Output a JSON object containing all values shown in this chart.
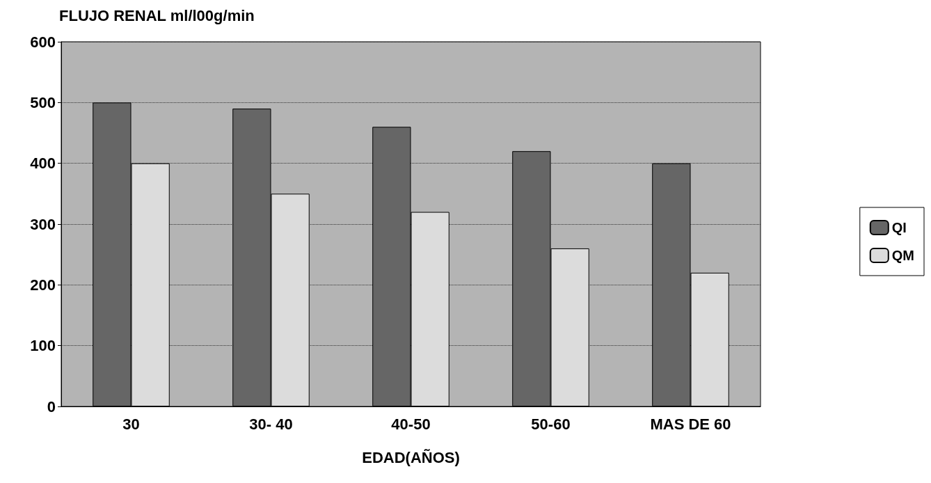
{
  "chart_data": {
    "type": "bar",
    "title": "FLUJO RENAL ml/l00g/min",
    "xlabel": "EDAD(AÑOS)",
    "categories": [
      "30",
      "30- 40",
      "40-50",
      "50-60",
      "MAS DE 60"
    ],
    "series": [
      {
        "name": "QI",
        "color": "#666666",
        "values": [
          500,
          490,
          460,
          420,
          400
        ]
      },
      {
        "name": "QM",
        "color": "#dcdcdc",
        "values": [
          400,
          350,
          320,
          260,
          220
        ]
      }
    ],
    "ylim": [
      0,
      600
    ],
    "yticks": [
      0,
      100,
      200,
      300,
      400,
      500,
      600
    ],
    "grid": "y",
    "legend": "right"
  }
}
